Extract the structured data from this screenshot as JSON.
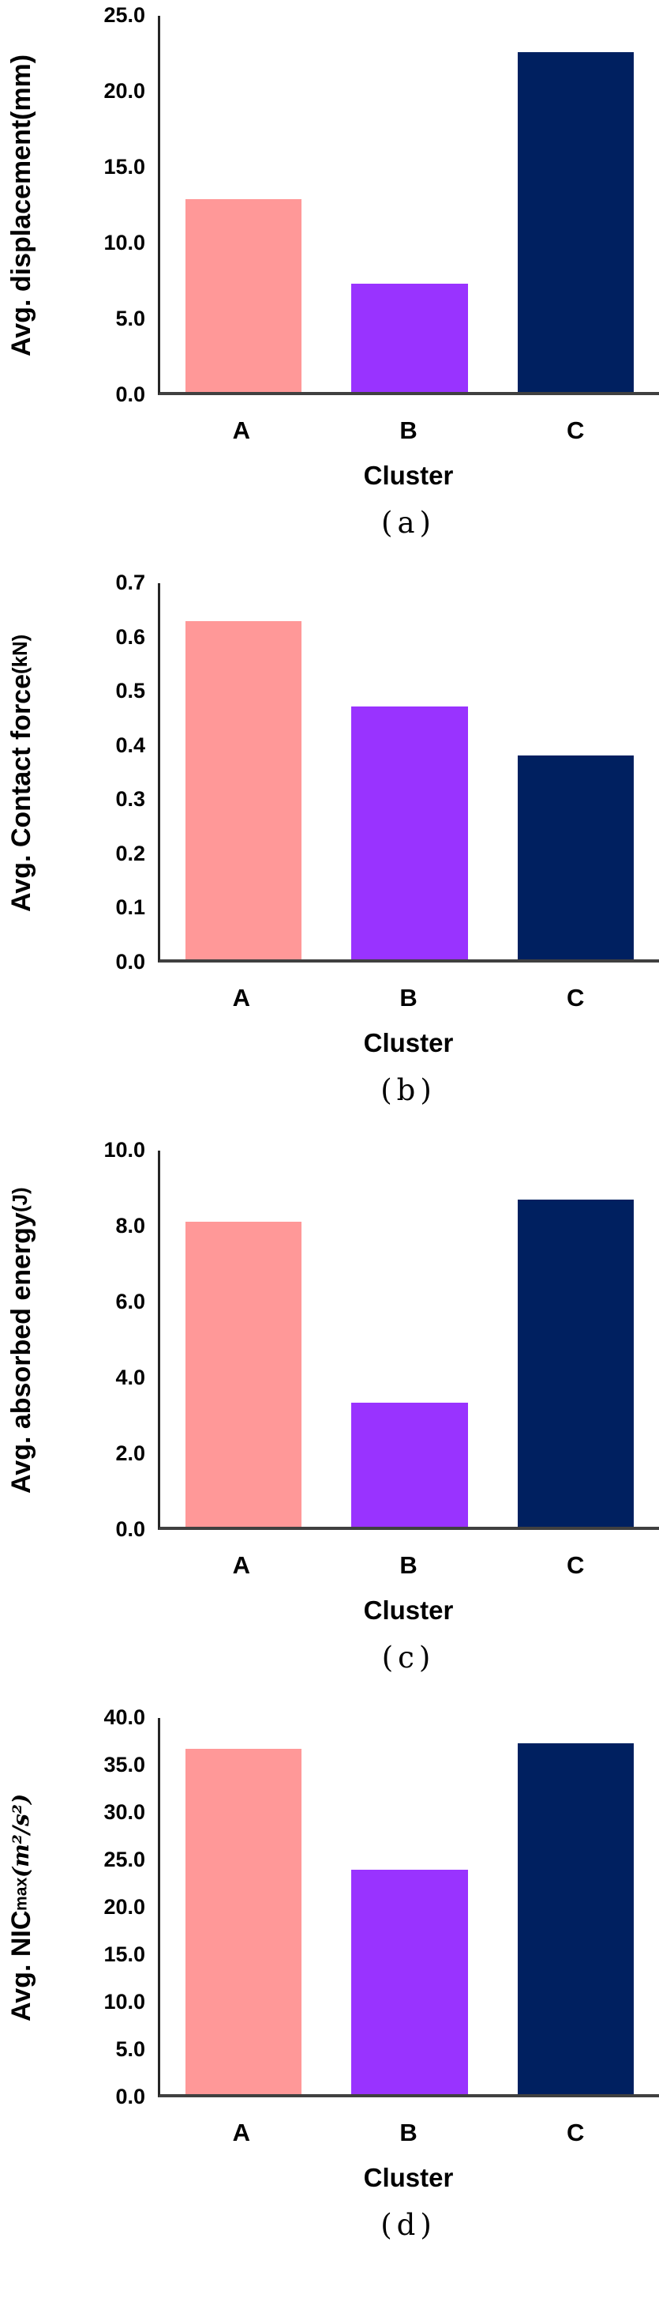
{
  "chart_data": [
    {
      "id": "a",
      "type": "bar",
      "ylabel_prefix": "Avg. displacement",
      "ylabel_sub": "",
      "ylabel_unit": " (mm)",
      "ylabel_full": "Avg. displacement (mm)",
      "xlabel": "Cluster",
      "caption": "(a)",
      "categories": [
        "A",
        "B",
        "C"
      ],
      "values": [
        12.8,
        7.2,
        22.6
      ],
      "ylim": [
        0,
        25
      ],
      "yticks": [
        "25.0",
        "20.0",
        "15.0",
        "10.0",
        "5.0",
        "0.0"
      ],
      "bar_colors": [
        "#FF9898",
        "#9933FF",
        "#002060"
      ],
      "grid": "off",
      "legend": "none"
    },
    {
      "id": "b",
      "type": "bar",
      "ylabel_prefix": "Avg. Contact force",
      "ylabel_sub": "",
      "ylabel_unit": " (kN)",
      "ylabel_full": "Avg. Contact force (kN)",
      "xlabel": "Cluster",
      "caption": "(b)",
      "categories": [
        "A",
        "B",
        "C"
      ],
      "values": [
        0.63,
        0.47,
        0.38
      ],
      "ylim": [
        0,
        0.7
      ],
      "yticks": [
        "0.7",
        "0.6",
        "0.5",
        "0.4",
        "0.3",
        "0.2",
        "0.1",
        "0.0"
      ],
      "bar_colors": [
        "#FF9898",
        "#9933FF",
        "#002060"
      ],
      "grid": "off",
      "legend": "none"
    },
    {
      "id": "c",
      "type": "bar",
      "ylabel_prefix": "Avg. absorbed energy",
      "ylabel_sub": "",
      "ylabel_unit": "(J)",
      "ylabel_full": "Avg. absorbed energy(J)",
      "xlabel": "Cluster",
      "caption": "(c)",
      "categories": [
        "A",
        "B",
        "C"
      ],
      "values": [
        8.1,
        3.3,
        8.7
      ],
      "ylim": [
        0,
        10
      ],
      "yticks": [
        "10.0",
        "8.0",
        "6.0",
        "4.0",
        "2.0",
        "0.0"
      ],
      "bar_colors": [
        "#FF9898",
        "#9933FF",
        "#002060"
      ],
      "grid": "off",
      "legend": "none"
    },
    {
      "id": "d",
      "type": "bar",
      "ylabel_prefix": "Avg. NIC",
      "ylabel_sub": "max",
      "ylabel_unit": " (m²/s²)",
      "ylabel_full": "Avg. NICmax (m²/s²)",
      "xlabel": "Cluster",
      "caption": "(d)",
      "categories": [
        "A",
        "B",
        "C"
      ],
      "values": [
        36.7,
        23.9,
        37.3
      ],
      "ylim": [
        0,
        40
      ],
      "yticks": [
        "40.0",
        "35.0",
        "30.0",
        "25.0",
        "20.0",
        "15.0",
        "10.0",
        "5.0",
        "0.0"
      ],
      "bar_colors": [
        "#FF9898",
        "#9933FF",
        "#002060"
      ],
      "grid": "off",
      "legend": "none"
    }
  ],
  "palette": {
    "cluster_A": "#FF9898",
    "cluster_B": "#9933FF",
    "cluster_C": "#002060",
    "axis_line": "#262626",
    "baseline": "#404040",
    "text": "#000000",
    "background": "#FFFFFF"
  }
}
